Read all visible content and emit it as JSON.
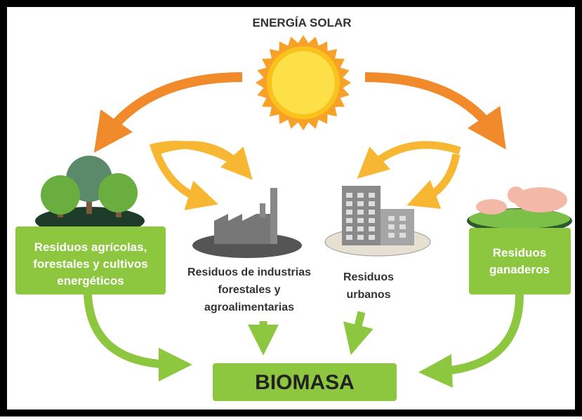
{
  "title": "ENERGÍA SOLAR",
  "sources": [
    {
      "label_lines": [
        "Residuos agrícolas,",
        "forestales y cultivos",
        "energéticos"
      ]
    },
    {
      "label_lines": [
        "Residuos de industrias",
        "forestales y",
        "agroalimentarias"
      ]
    },
    {
      "label_lines": [
        "Residuos",
        "urbanos"
      ]
    },
    {
      "label_lines": [
        "Residuos",
        "ganaderos"
      ]
    }
  ],
  "target": "BIOMASA"
}
